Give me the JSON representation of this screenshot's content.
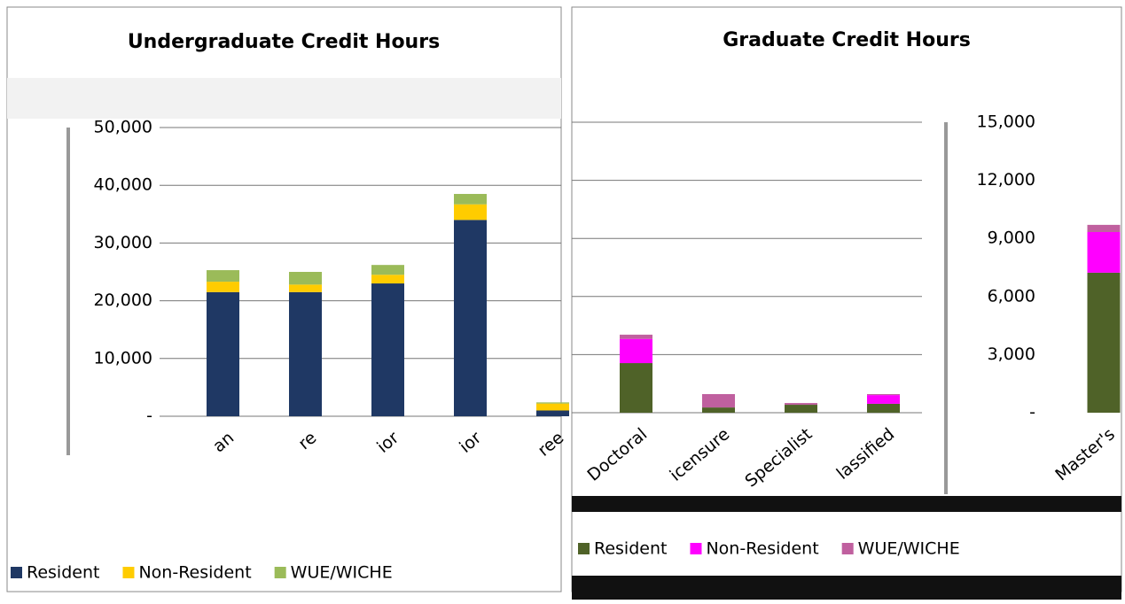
{
  "chart_data": [
    {
      "type": "bar",
      "stacked": true,
      "title": "Undergraduate Credit Hours",
      "categories": [
        "an",
        "re",
        "ior",
        "ior",
        "ree"
      ],
      "series": [
        {
          "name": "Resident",
          "color": "#1f3864",
          "values": [
            21500,
            21500,
            23000,
            34000,
            1000
          ]
        },
        {
          "name": "Non-Resident",
          "color": "#ffcc00",
          "values": [
            1800,
            1300,
            1500,
            2700,
            1200
          ]
        },
        {
          "name": "WUE/WICHE",
          "color": "#9bbb59",
          "values": [
            2000,
            2200,
            1700,
            1800,
            200
          ]
        }
      ],
      "ylim": [
        0,
        50000
      ],
      "yticks": [
        {
          "value": 0,
          "label": "-"
        },
        {
          "value": 10000,
          "label": "10,000"
        },
        {
          "value": 20000,
          "label": "20,000"
        },
        {
          "value": 30000,
          "label": "30,000"
        },
        {
          "value": 40000,
          "label": "40,000"
        },
        {
          "value": 50000,
          "label": "50,000"
        }
      ],
      "grid": true,
      "legend": "bottom"
    },
    {
      "type": "bar",
      "stacked": true,
      "title": "Graduate Credit Hours",
      "categories": [
        "Doctoral",
        "icensure",
        "Specialist",
        "lassified",
        "Master's"
      ],
      "series": [
        {
          "name": "Resident",
          "color": "#4f6228",
          "values": [
            2560,
            270,
            410,
            460,
            7230
          ]
        },
        {
          "name": "Non-Resident",
          "color": "#ff00ff",
          "values": [
            1250,
            0,
            0,
            450,
            2100
          ]
        },
        {
          "name": "WUE/WICHE",
          "color": "#c0609f",
          "values": [
            220,
            690,
            90,
            50,
            370
          ]
        }
      ],
      "ylim": [
        0,
        15000
      ],
      "yticks": [
        {
          "value": 0,
          "label": "-"
        },
        {
          "value": 3000,
          "label": "3,000"
        },
        {
          "value": 6000,
          "label": "6,000"
        },
        {
          "value": 9000,
          "label": "9,000"
        },
        {
          "value": 12000,
          "label": "12,000"
        },
        {
          "value": 15000,
          "label": "15,000"
        }
      ],
      "grid": true,
      "legend": "bottom"
    }
  ]
}
